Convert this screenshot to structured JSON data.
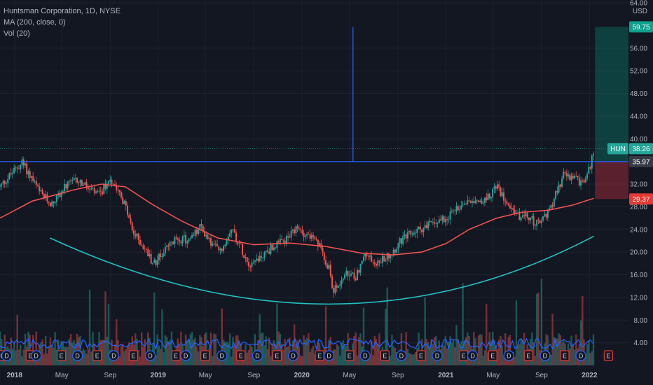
{
  "legend": {
    "title": "Huntsman Corporation, 1D, NYSE",
    "ma": "MA (200, close, 0)",
    "vol": "Vol (20)"
  },
  "chart_data": {
    "type": "candlestick",
    "symbol": "HUN",
    "currency": "USD",
    "currency_label": "USD",
    "y_ticks": [
      {
        "label": "64.00",
        "value": 64
      },
      {
        "label": "56.00",
        "value": 56
      },
      {
        "label": "52.00",
        "value": 52
      },
      {
        "label": "48.00",
        "value": 48
      },
      {
        "label": "44.00",
        "value": 44
      },
      {
        "label": "40.00",
        "value": 40
      },
      {
        "label": "32.00",
        "value": 32
      },
      {
        "label": "28.00",
        "value": 28
      },
      {
        "label": "24.00",
        "value": 24
      },
      {
        "label": "20.00",
        "value": 20
      },
      {
        "label": "16.00",
        "value": 16
      },
      {
        "label": "12.00",
        "value": 12
      },
      {
        "label": "8.00",
        "value": 8
      },
      {
        "label": "4.00",
        "value": 4
      }
    ],
    "ylim": [
      0,
      64
    ],
    "x_ticks": [
      {
        "label": "2018",
        "date": "2018-01-01",
        "bold": true
      },
      {
        "label": "May",
        "date": "2018-05-01",
        "bold": false
      },
      {
        "label": "Sep",
        "date": "2018-09-01",
        "bold": false
      },
      {
        "label": "2019",
        "date": "2019-01-01",
        "bold": true
      },
      {
        "label": "May",
        "date": "2019-05-01",
        "bold": false
      },
      {
        "label": "Sep",
        "date": "2019-09-01",
        "bold": false
      },
      {
        "label": "2020",
        "date": "2020-01-01",
        "bold": true
      },
      {
        "label": "May",
        "date": "2020-05-01",
        "bold": false
      },
      {
        "label": "Sep",
        "date": "2020-09-01",
        "bold": false
      },
      {
        "label": "2021",
        "date": "2021-01-01",
        "bold": true
      },
      {
        "label": "May",
        "date": "2021-05-01",
        "bold": false
      },
      {
        "label": "Sep",
        "date": "2021-09-01",
        "bold": false
      },
      {
        "label": "2022",
        "date": "2022-01-01",
        "bold": true
      }
    ],
    "xlim": [
      "2017-11-25",
      "2022-04-10"
    ],
    "price_path": [
      [
        "2017-11-25",
        31.5
      ],
      [
        "2017-12-20",
        33.5
      ],
      [
        "2018-01-20",
        35.8
      ],
      [
        "2018-02-10",
        33.5
      ],
      [
        "2018-03-05",
        30.5
      ],
      [
        "2018-04-05",
        28.5
      ],
      [
        "2018-05-10",
        31.5
      ],
      [
        "2018-06-10",
        32.8
      ],
      [
        "2018-07-10",
        31.0
      ],
      [
        "2018-08-05",
        30.0
      ],
      [
        "2018-08-31",
        33.0
      ],
      [
        "2018-09-20",
        31.5
      ],
      [
        "2018-10-10",
        28.0
      ],
      [
        "2018-10-28",
        23.5
      ],
      [
        "2018-11-20",
        21.5
      ],
      [
        "2018-12-20",
        18.0
      ],
      [
        "2019-01-20",
        20.5
      ],
      [
        "2019-02-20",
        22.5
      ],
      [
        "2019-03-20",
        22.0
      ],
      [
        "2019-04-20",
        24.5
      ],
      [
        "2019-05-15",
        21.5
      ],
      [
        "2019-06-10",
        20.0
      ],
      [
        "2019-07-05",
        24.5
      ],
      [
        "2019-07-25",
        21.5
      ],
      [
        "2019-08-20",
        18.0
      ],
      [
        "2019-09-15",
        19.0
      ],
      [
        "2019-10-20",
        21.0
      ],
      [
        "2019-11-20",
        22.0
      ],
      [
        "2019-12-20",
        24.0
      ],
      [
        "2020-01-20",
        23.0
      ],
      [
        "2020-02-20",
        20.5
      ],
      [
        "2020-03-10",
        17.0
      ],
      [
        "2020-03-22",
        13.0
      ],
      [
        "2020-04-20",
        16.0
      ],
      [
        "2020-05-15",
        15.5
      ],
      [
        "2020-06-10",
        19.5
      ],
      [
        "2020-07-10",
        18.0
      ],
      [
        "2020-08-10",
        19.5
      ],
      [
        "2020-09-10",
        22.0
      ],
      [
        "2020-10-10",
        23.5
      ],
      [
        "2020-11-10",
        24.5
      ],
      [
        "2020-12-10",
        25.5
      ],
      [
        "2021-01-10",
        26.5
      ],
      [
        "2021-02-10",
        28.5
      ],
      [
        "2021-03-10",
        29.5
      ],
      [
        "2021-04-10",
        29.0
      ],
      [
        "2021-05-08",
        31.5
      ],
      [
        "2021-06-01",
        29.5
      ],
      [
        "2021-07-01",
        26.5
      ],
      [
        "2021-08-01",
        26.0
      ],
      [
        "2021-08-25",
        24.8
      ],
      [
        "2021-09-20",
        27.5
      ],
      [
        "2021-10-10",
        30.5
      ],
      [
        "2021-10-25",
        33.5
      ],
      [
        "2021-11-25",
        33.0
      ],
      [
        "2021-12-15",
        32.0
      ],
      [
        "2022-01-05",
        35.5
      ],
      [
        "2022-01-12",
        38.26
      ]
    ],
    "ma200_path": [
      [
        "2017-11-25",
        26.0
      ],
      [
        "2018-02-15",
        29.0
      ],
      [
        "2018-06-01",
        31.0
      ],
      [
        "2018-08-10",
        32.0
      ],
      [
        "2018-10-10",
        31.5
      ],
      [
        "2018-12-15",
        28.5
      ],
      [
        "2019-03-01",
        25.5
      ],
      [
        "2019-06-01",
        22.5
      ],
      [
        "2019-09-01",
        21.3
      ],
      [
        "2019-12-01",
        21.6
      ],
      [
        "2020-03-01",
        21.0
      ],
      [
        "2020-06-01",
        19.8
      ],
      [
        "2020-08-20",
        19.5
      ],
      [
        "2020-11-01",
        20.0
      ],
      [
        "2021-01-01",
        21.5
      ],
      [
        "2021-03-01",
        24.0
      ],
      [
        "2021-05-10",
        26.0
      ],
      [
        "2021-07-10",
        27.0
      ],
      [
        "2021-09-20",
        27.4
      ],
      [
        "2021-11-20",
        28.3
      ],
      [
        "2022-01-12",
        29.5
      ]
    ],
    "cup_curve": {
      "start": [
        "2018-04-01",
        22.5
      ],
      "control": [
        "2020-04-01",
        -1.0
      ],
      "end": [
        "2022-01-12",
        22.8
      ]
    },
    "resistance_level": 35.97,
    "vertical_marker_date": "2020-05-10",
    "vertical_marker_top": 59.75,
    "position_tool": {
      "start_date": "2022-01-15",
      "end_date": "2022-04-10",
      "target": 59.75,
      "entry": 35.97,
      "stop": 29.37
    },
    "last_price": 38.26,
    "price_tags": [
      {
        "label": "59.75",
        "value": 59.75,
        "color": "#0e9f8d",
        "prefix": ""
      },
      {
        "label": "38.26",
        "value": 38.26,
        "color": "#26a69a",
        "prefix": "HUN"
      },
      {
        "label": "35.97",
        "value": 35.97,
        "color": "#363a45",
        "prefix": ""
      },
      {
        "label": "29.37",
        "value": 29.37,
        "color": "#e53935",
        "prefix": ""
      }
    ],
    "volume_ma_level": 3.8,
    "events": [
      {
        "label": "E",
        "date": "2017-12-01",
        "kind": "earnings"
      },
      {
        "label": "D",
        "date": "2017-12-12",
        "kind": "dividend"
      },
      {
        "label": "E",
        "date": "2018-02-10",
        "kind": "earnings"
      },
      {
        "label": "D",
        "date": "2018-02-25",
        "kind": "dividend"
      },
      {
        "label": "E",
        "date": "2018-04-30",
        "kind": "earnings"
      },
      {
        "label": "D",
        "date": "2018-06-10",
        "kind": "dividend"
      },
      {
        "label": "E",
        "date": "2018-07-30",
        "kind": "earnings"
      },
      {
        "label": "D",
        "date": "2018-09-10",
        "kind": "dividend"
      },
      {
        "label": "E",
        "date": "2018-10-30",
        "kind": "earnings"
      },
      {
        "label": "D",
        "date": "2018-12-12",
        "kind": "dividend"
      },
      {
        "label": "E",
        "date": "2019-02-15",
        "kind": "earnings"
      },
      {
        "label": "D",
        "date": "2019-03-12",
        "kind": "dividend"
      },
      {
        "label": "E",
        "date": "2019-04-30",
        "kind": "earnings"
      },
      {
        "label": "D",
        "date": "2019-06-12",
        "kind": "dividend"
      },
      {
        "label": "E",
        "date": "2019-07-30",
        "kind": "earnings"
      },
      {
        "label": "D",
        "date": "2019-09-10",
        "kind": "dividend"
      },
      {
        "label": "E",
        "date": "2019-10-30",
        "kind": "earnings"
      },
      {
        "label": "D",
        "date": "2019-12-10",
        "kind": "dividend"
      },
      {
        "label": "E",
        "date": "2020-02-15",
        "kind": "earnings"
      },
      {
        "label": "D",
        "date": "2020-03-10",
        "kind": "dividend"
      },
      {
        "label": "E",
        "date": "2020-05-01",
        "kind": "earnings"
      },
      {
        "label": "D",
        "date": "2020-06-10",
        "kind": "dividend"
      },
      {
        "label": "E",
        "date": "2020-07-30",
        "kind": "earnings"
      },
      {
        "label": "D",
        "date": "2020-09-10",
        "kind": "dividend"
      },
      {
        "label": "E",
        "date": "2020-10-30",
        "kind": "earnings"
      },
      {
        "label": "D",
        "date": "2020-12-10",
        "kind": "dividend"
      },
      {
        "label": "E",
        "date": "2021-02-15",
        "kind": "earnings"
      },
      {
        "label": "D",
        "date": "2021-03-10",
        "kind": "dividend"
      },
      {
        "label": "E",
        "date": "2021-04-30",
        "kind": "earnings"
      },
      {
        "label": "D",
        "date": "2021-06-10",
        "kind": "dividend"
      },
      {
        "label": "E",
        "date": "2021-07-30",
        "kind": "earnings"
      },
      {
        "label": "D",
        "date": "2021-09-10",
        "kind": "dividend"
      },
      {
        "label": "E",
        "date": "2021-10-30",
        "kind": "earnings"
      },
      {
        "label": "D",
        "date": "2021-12-10",
        "kind": "dividend"
      },
      {
        "label": "E",
        "date": "2022-02-18",
        "kind": "earnings"
      }
    ],
    "colors": {
      "background": "#131722",
      "up": "#26a69a",
      "down": "#ef5350",
      "ma": "#f05350",
      "cup": "#22c1c3",
      "resistance": "#2962ff",
      "volume_ma": "#2962ff",
      "text": "#b2b5be",
      "grid": "#1e222d",
      "earnings": "#e53935",
      "dividend": "#2962ff"
    }
  }
}
